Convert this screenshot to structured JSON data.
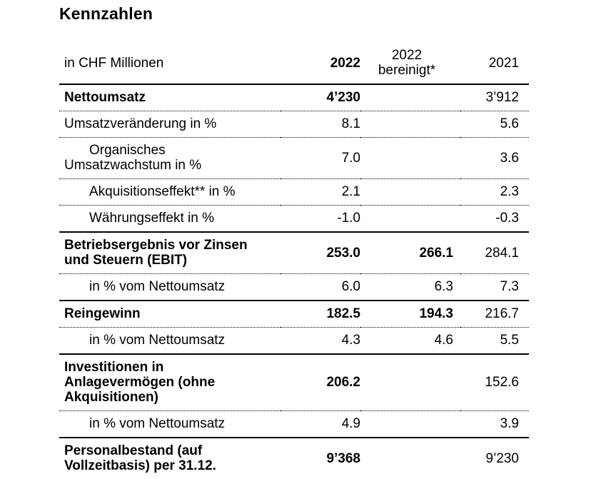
{
  "title": "Kennzahlen",
  "colors": {
    "text": "#000000",
    "rule": "#000000",
    "background": "#ffffff"
  },
  "table": {
    "unit_label": "in CHF Millionen",
    "columns": {
      "y2022": "2022",
      "y2022adj": "2022\nbereinigt*",
      "y2021": "2021"
    },
    "rows": [
      {
        "label": "Nettoumsatz",
        "v2022": "4’230",
        "v2022adj": "",
        "v2021": "3’912"
      },
      {
        "label": "Umsatzveränderung in %",
        "v2022": "8.1",
        "v2022adj": "",
        "v2021": "5.6"
      },
      {
        "label": "Organisches\nUmsatzwachstum in %",
        "v2022": "7.0",
        "v2022adj": "",
        "v2021": "3.6"
      },
      {
        "label": "Akquisitionseffekt** in %",
        "v2022": "2.1",
        "v2022adj": "",
        "v2021": "2.3"
      },
      {
        "label": "Währungseffekt in %",
        "v2022": "-1.0",
        "v2022adj": "",
        "v2021": "-0.3"
      },
      {
        "label": "Betriebsergebnis vor Zinsen\nund Steuern (EBIT)",
        "v2022": "253.0",
        "v2022adj": "266.1",
        "v2021": "284.1"
      },
      {
        "label": "in % vom Nettoumsatz",
        "v2022": "6.0",
        "v2022adj": "6.3",
        "v2021": "7.3"
      },
      {
        "label": "Reingewinn",
        "v2022": "182.5",
        "v2022adj": "194.3",
        "v2021": "216.7"
      },
      {
        "label": "in % vom Nettoumsatz",
        "v2022": "4.3",
        "v2022adj": "4.6",
        "v2021": "5.5"
      },
      {
        "label": "Investitionen in\nAnlagevermögen (ohne\nAkquisitionen)",
        "v2022": "206.2",
        "v2022adj": "",
        "v2021": "152.6"
      },
      {
        "label": "in % vom Nettoumsatz",
        "v2022": "4.9",
        "v2022adj": "",
        "v2021": "3.9"
      },
      {
        "label": "Personalbestand (auf\nVollzeitbasis) per 31.12.",
        "v2022": "9’368",
        "v2022adj": "",
        "v2021": "9’230"
      }
    ]
  }
}
